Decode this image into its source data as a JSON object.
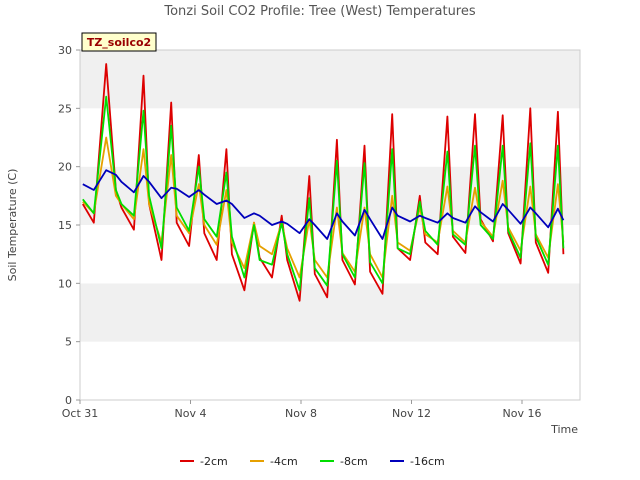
{
  "chart_data": {
    "type": "line",
    "title": "Tonzi Soil CO2 Profile: Tree (West) Temperatures",
    "badge": "TZ_soilco2",
    "xlabel": "Time",
    "ylabel": "Soil Temperature (C)",
    "ylim": [
      0,
      30
    ],
    "yticks": [
      0,
      5,
      10,
      15,
      20,
      25,
      30
    ],
    "xlim": [
      0,
      18.1
    ],
    "xticks": [
      {
        "value": 0,
        "label": "Oct 31"
      },
      {
        "value": 4,
        "label": "Nov 4"
      },
      {
        "value": 8,
        "label": "Nov 8"
      },
      {
        "value": 12,
        "label": "Nov 12"
      },
      {
        "value": 16,
        "label": "Nov 16"
      }
    ],
    "grid": "alternating horizontal bands",
    "legend_position": "bottom",
    "series": [
      {
        "name": "-2cm",
        "color": "#dd0000",
        "x": [
          0.1,
          0.5,
          0.95,
          1.3,
          1.5,
          1.95,
          2.3,
          2.5,
          2.95,
          3.3,
          3.5,
          3.95,
          4.3,
          4.5,
          4.95,
          5.3,
          5.5,
          5.95,
          6.3,
          6.5,
          6.95,
          7.3,
          7.5,
          7.95,
          8.3,
          8.5,
          8.95,
          9.3,
          9.5,
          9.95,
          10.3,
          10.5,
          10.95,
          11.3,
          11.5,
          11.95,
          12.3,
          12.5,
          12.95,
          13.3,
          13.5,
          13.95,
          14.3,
          14.5,
          14.95,
          15.3,
          15.5,
          15.95,
          16.3,
          16.5,
          16.95,
          17.3,
          17.5
        ],
        "y": [
          16.8,
          15.2,
          28.8,
          18.0,
          16.5,
          14.6,
          27.8,
          16.8,
          12.0,
          25.5,
          15.2,
          13.2,
          21.0,
          14.3,
          12.0,
          21.5,
          12.5,
          9.4,
          15.2,
          12.2,
          10.5,
          15.8,
          12.0,
          8.5,
          19.2,
          10.8,
          8.8,
          22.3,
          12.0,
          9.9,
          21.8,
          11.0,
          9.1,
          24.5,
          13.0,
          12.0,
          17.5,
          13.5,
          12.5,
          24.3,
          14.0,
          12.6,
          24.5,
          15.5,
          13.6,
          24.4,
          14.3,
          11.7,
          25.0,
          13.5,
          10.9,
          24.7,
          12.5
        ]
      },
      {
        "name": "-4cm",
        "color": "#e6a000",
        "x": [
          0.1,
          0.5,
          0.95,
          1.3,
          1.5,
          1.95,
          2.3,
          2.5,
          2.95,
          3.3,
          3.5,
          3.95,
          4.3,
          4.5,
          4.95,
          5.3,
          5.5,
          5.95,
          6.3,
          6.5,
          6.95,
          7.3,
          7.5,
          7.95,
          8.3,
          8.5,
          8.95,
          9.3,
          9.5,
          9.95,
          10.3,
          10.5,
          10.95,
          11.3,
          11.5,
          11.95,
          12.3,
          12.5,
          12.95,
          13.3,
          13.5,
          13.95,
          14.3,
          14.5,
          14.95,
          15.3,
          15.5,
          15.95,
          16.3,
          16.5,
          16.95,
          17.3,
          17.5
        ],
        "y": [
          17.0,
          16.0,
          22.5,
          17.5,
          16.8,
          15.5,
          21.5,
          16.8,
          13.5,
          21.0,
          15.8,
          14.3,
          18.5,
          15.0,
          13.3,
          18.0,
          13.5,
          11.3,
          15.2,
          13.2,
          12.5,
          15.2,
          13.0,
          10.5,
          15.5,
          12.0,
          10.5,
          16.5,
          12.6,
          11.0,
          16.5,
          12.5,
          10.5,
          17.5,
          13.5,
          12.8,
          16.5,
          14.2,
          13.5,
          18.3,
          14.5,
          13.5,
          18.2,
          15.3,
          14.0,
          18.8,
          14.8,
          12.8,
          18.3,
          14.2,
          12.2,
          18.5,
          13.5
        ]
      },
      {
        "name": "-8cm",
        "color": "#00dd00",
        "x": [
          0.1,
          0.5,
          0.95,
          1.3,
          1.5,
          1.95,
          2.3,
          2.5,
          2.95,
          3.3,
          3.5,
          3.95,
          4.3,
          4.5,
          4.95,
          5.3,
          5.5,
          5.95,
          6.3,
          6.5,
          6.95,
          7.3,
          7.5,
          7.95,
          8.3,
          8.5,
          8.95,
          9.3,
          9.5,
          9.95,
          10.3,
          10.5,
          10.95,
          11.3,
          11.5,
          11.95,
          12.3,
          12.5,
          12.95,
          13.3,
          13.5,
          13.95,
          14.3,
          14.5,
          14.95,
          15.3,
          15.5,
          15.95,
          16.3,
          16.5,
          16.95,
          17.3,
          17.5
        ],
        "y": [
          17.2,
          16.0,
          26.0,
          18.0,
          16.8,
          15.8,
          24.8,
          17.5,
          13.0,
          23.5,
          16.5,
          14.5,
          20.0,
          15.5,
          14.0,
          19.5,
          14.0,
          10.5,
          15.0,
          12.0,
          11.6,
          15.2,
          12.5,
          9.4,
          17.3,
          11.3,
          9.8,
          20.5,
          12.5,
          10.5,
          20.3,
          11.8,
          10.0,
          21.5,
          13.0,
          12.5,
          17.0,
          14.5,
          13.3,
          21.3,
          14.2,
          13.3,
          21.8,
          15.0,
          13.8,
          21.8,
          14.5,
          12.2,
          22.0,
          14.0,
          11.6,
          21.8,
          13.0
        ]
      },
      {
        "name": "-16cm",
        "color": "#0000bb",
        "x": [
          0.1,
          0.5,
          0.95,
          1.3,
          1.5,
          1.95,
          2.3,
          2.5,
          2.95,
          3.3,
          3.5,
          3.95,
          4.3,
          4.5,
          4.95,
          5.3,
          5.5,
          5.95,
          6.3,
          6.5,
          6.95,
          7.3,
          7.5,
          7.95,
          8.3,
          8.5,
          8.95,
          9.3,
          9.5,
          9.95,
          10.3,
          10.5,
          10.95,
          11.3,
          11.5,
          11.95,
          12.3,
          12.5,
          12.95,
          13.3,
          13.5,
          13.95,
          14.3,
          14.5,
          14.95,
          15.3,
          15.5,
          15.95,
          16.3,
          16.5,
          16.95,
          17.3,
          17.5
        ],
        "y": [
          18.5,
          18.0,
          19.7,
          19.3,
          18.7,
          17.8,
          19.2,
          18.7,
          17.3,
          18.2,
          18.1,
          17.4,
          18.0,
          17.6,
          16.8,
          17.1,
          16.8,
          15.6,
          16.0,
          15.8,
          15.0,
          15.3,
          15.1,
          14.3,
          15.5,
          15.0,
          13.8,
          16.0,
          15.3,
          14.1,
          16.3,
          15.5,
          13.8,
          16.5,
          15.8,
          15.3,
          15.8,
          15.6,
          15.2,
          16.0,
          15.6,
          15.2,
          16.6,
          16.1,
          15.3,
          16.8,
          16.3,
          15.1,
          16.5,
          16.0,
          14.8,
          16.4,
          15.4
        ]
      }
    ]
  }
}
